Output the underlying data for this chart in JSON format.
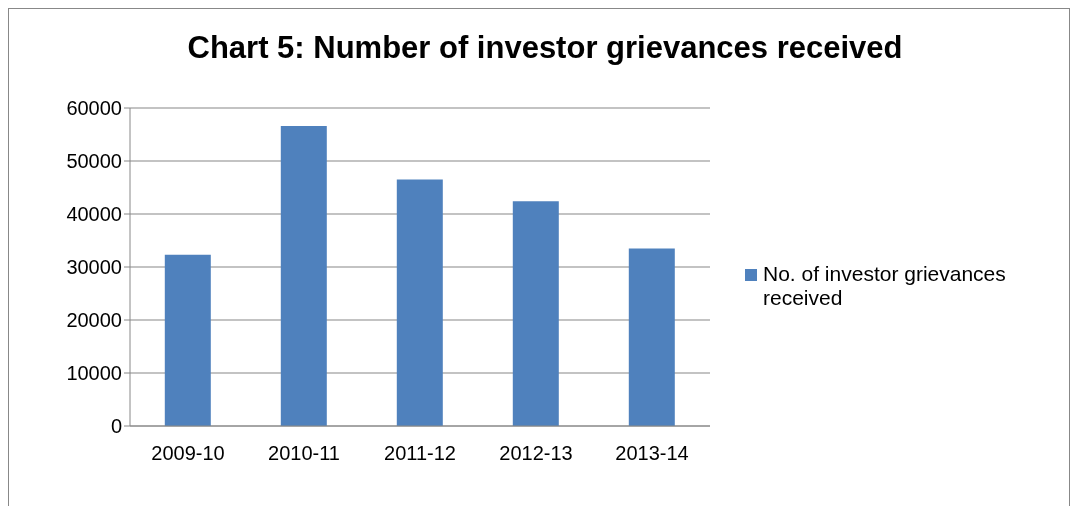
{
  "chart_data": {
    "type": "bar",
    "title": "Chart 5: Number of investor grievances received",
    "categories": [
      "2009-10",
      "2010-11",
      "2011-12",
      "2012-13",
      "2013-14"
    ],
    "series": [
      {
        "name": "No. of investor grievances received",
        "color": "#4f81bd",
        "values": [
          32300,
          56600,
          46500,
          42400,
          33500
        ]
      }
    ],
    "ylim": [
      0,
      60000
    ],
    "yticks": [
      0,
      10000,
      20000,
      30000,
      40000,
      50000,
      60000
    ],
    "grid": "y",
    "legend": "right"
  }
}
